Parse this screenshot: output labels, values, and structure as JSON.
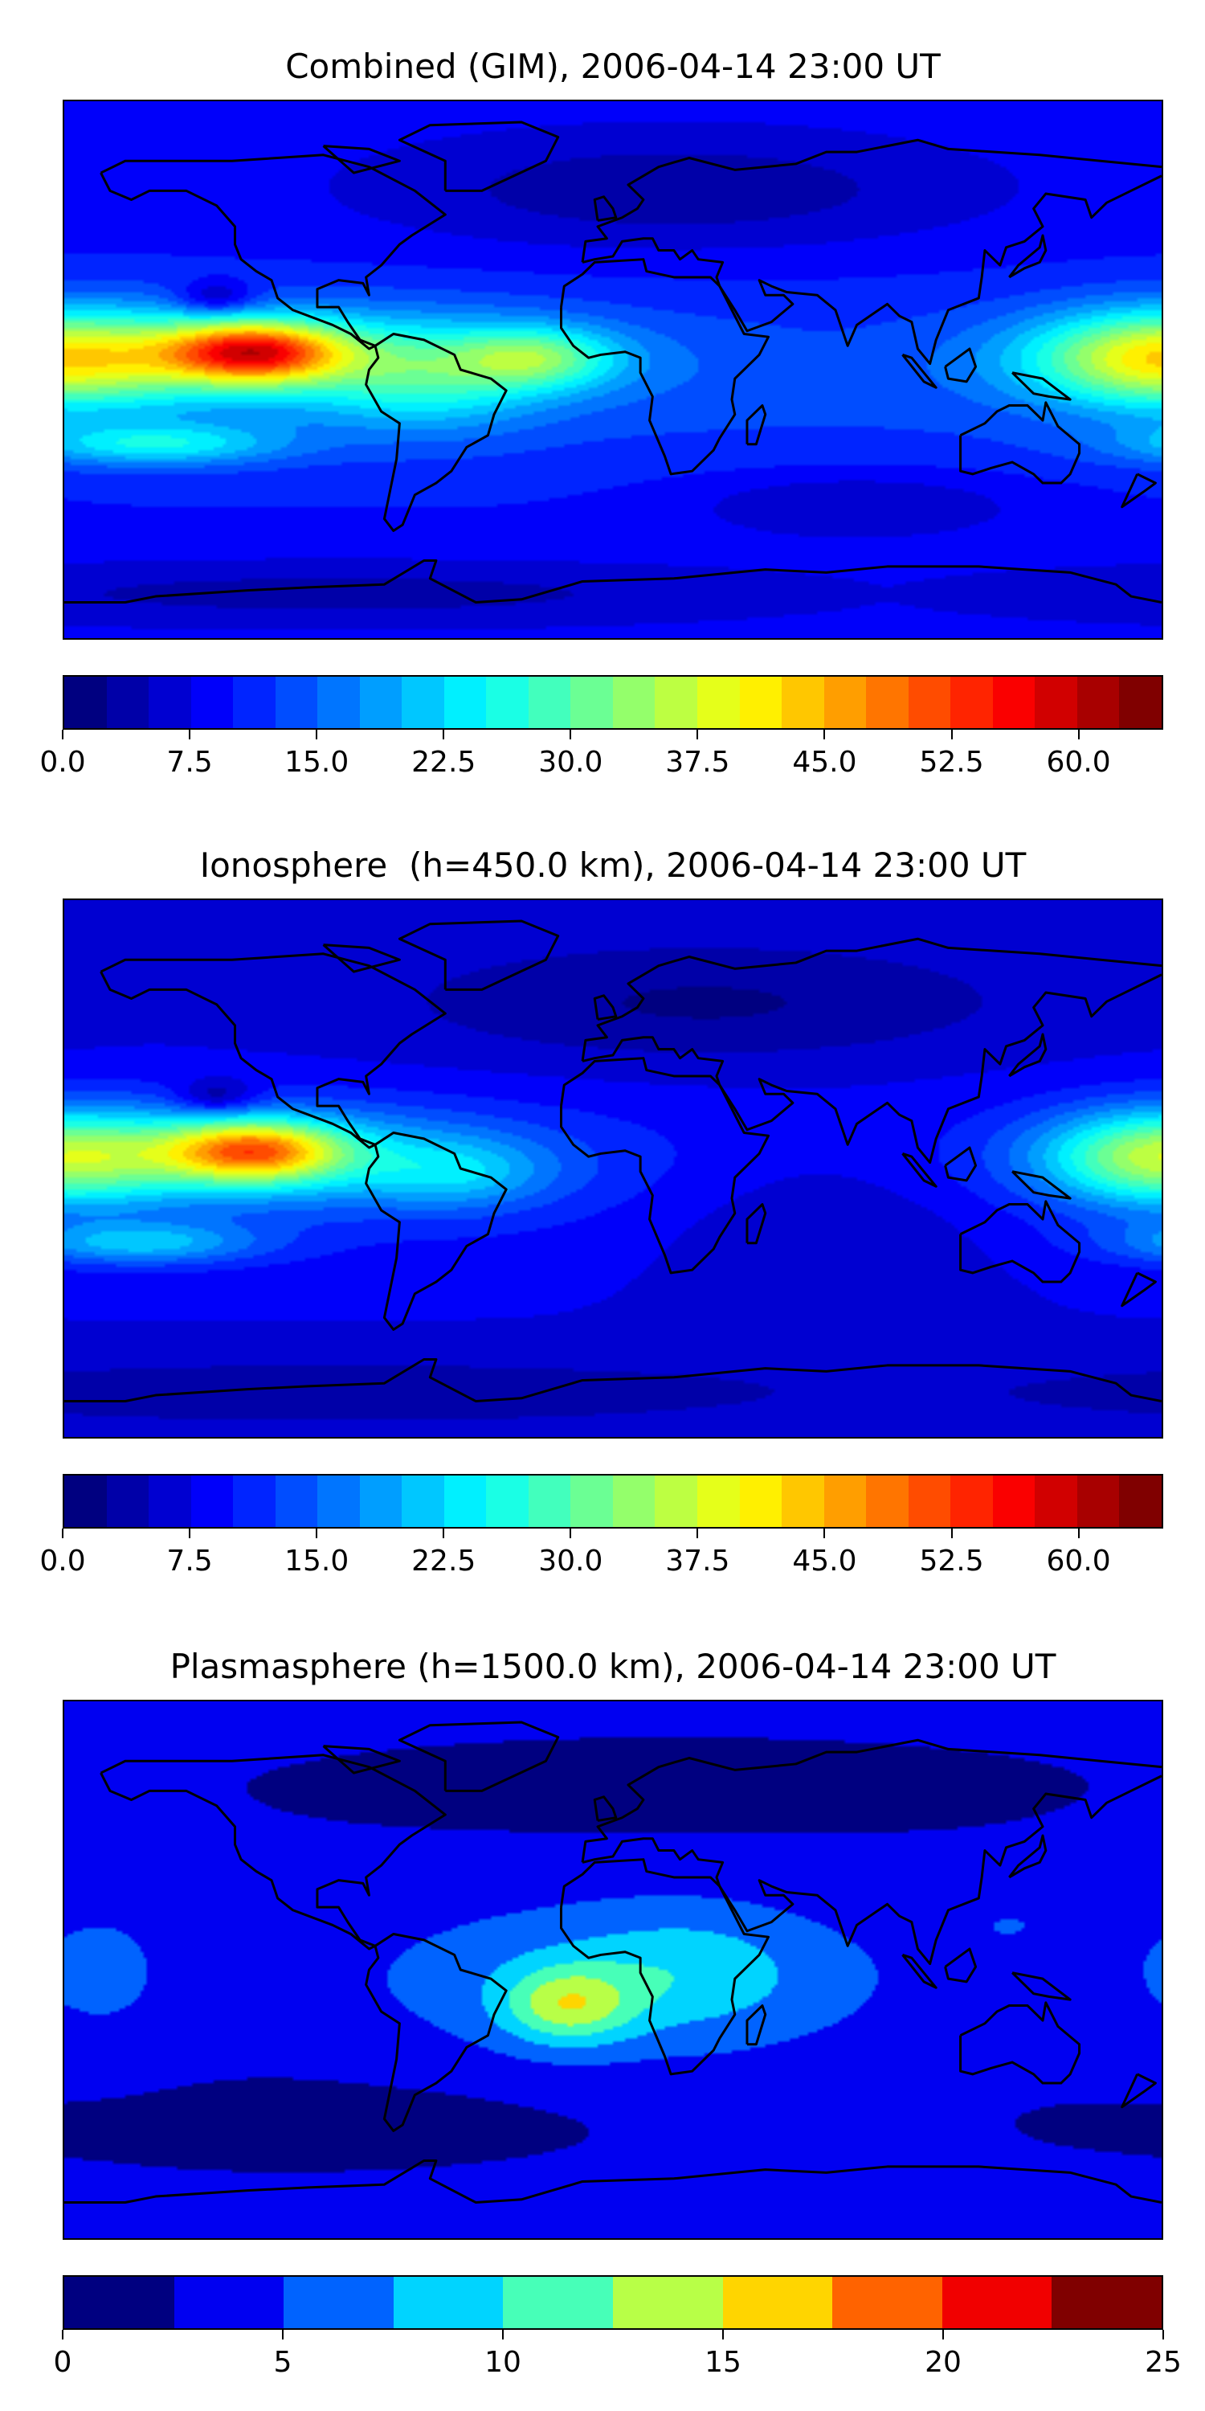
{
  "chart_data": [
    {
      "type": "heatmap",
      "title": "Combined (GIM), 2006-04-14 23:00 UT",
      "colormap": "jet",
      "projection": "equirectangular, lon -180..180, lat -90..90",
      "colorbar": {
        "range": [
          0,
          65
        ],
        "level_step": 2.5,
        "ticks": [
          0,
          7.5,
          15,
          22.5,
          30,
          37.5,
          45,
          52.5,
          60
        ],
        "tick_labels": [
          "0.0",
          "7.5",
          "15.0",
          "22.5",
          "30.0",
          "37.5",
          "45.0",
          "52.5",
          "60.0"
        ]
      },
      "features": {
        "max_value_approx": 62,
        "max_location": "central Pacific near equator (~120W, 5N)"
      }
    },
    {
      "type": "heatmap",
      "title": "Ionosphere  (h=450.0 km), 2006-04-14 23:00 UT",
      "colormap": "jet",
      "projection": "equirectangular, lon -180..180, lat -90..90",
      "colorbar": {
        "range": [
          0,
          65
        ],
        "level_step": 2.5,
        "ticks": [
          0,
          7.5,
          15,
          22.5,
          30,
          37.5,
          45,
          52.5,
          60
        ],
        "tick_labels": [
          "0.0",
          "7.5",
          "15.0",
          "22.5",
          "30.0",
          "37.5",
          "45.0",
          "52.5",
          "60.0"
        ]
      },
      "features": {
        "max_value_approx": 55,
        "max_location": "central Pacific near equator (~120W, 5N)"
      }
    },
    {
      "type": "heatmap",
      "title": "Plasmasphere (h=1500.0 km), 2006-04-14 23:00 UT",
      "colormap": "jet",
      "projection": "equirectangular, lon -180..180, lat -90..90",
      "colorbar": {
        "range": [
          0,
          25
        ],
        "level_step": 2.5,
        "ticks": [
          0,
          5,
          10,
          15,
          20,
          25
        ],
        "tick_labels": [
          "0",
          "5",
          "10",
          "15",
          "20",
          "25"
        ]
      },
      "features": {
        "max_value_approx": 16,
        "max_location": "South Atlantic (~15W, 10S)"
      }
    }
  ]
}
